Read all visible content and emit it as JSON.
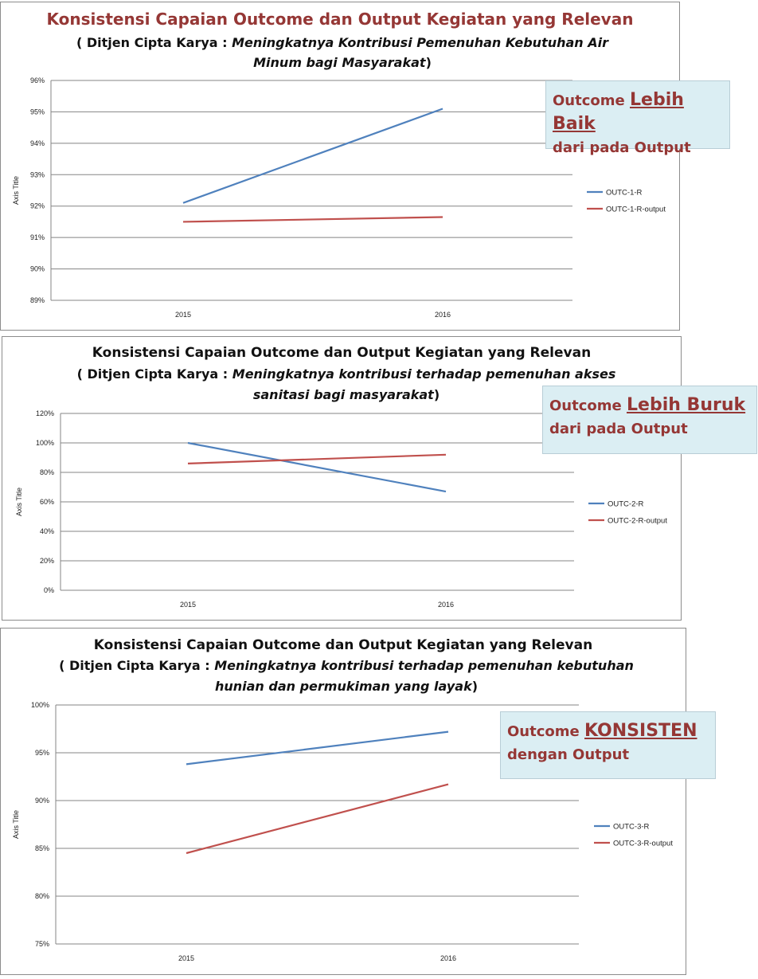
{
  "colors": {
    "series1": "#4f81bd",
    "series2": "#c0504d",
    "grid": "#858585",
    "callout_bg": "#dbeef3",
    "callout_text": "#953735"
  },
  "chart_data": [
    {
      "type": "line",
      "title": "Konsistensi Capaian Outcome dan  Output Kegiatan yang Relevan",
      "subtitle_prefix": "( Ditjen Cipta Karya : ",
      "subtitle_italic": "Meningkatnya Kontribusi  Pemenuhan Kebutuhan Air Minum bagi Masyarakat",
      "subtitle_suffix": ")",
      "ylabel": "Axis Title",
      "categories": [
        "2015",
        "2016"
      ],
      "yticks": [
        "89%",
        "90%",
        "91%",
        "92%",
        "93%",
        "94%",
        "95%",
        "96%"
      ],
      "ylim": [
        89,
        96
      ],
      "grid": true,
      "legend_placement": "right",
      "series": [
        {
          "name": "OUTC-1-R",
          "values": [
            92.1,
            95.1
          ]
        },
        {
          "name": "OUTC-1-R-output",
          "values": [
            91.5,
            91.65
          ]
        }
      ],
      "callout": {
        "prefix": "Outcome ",
        "emphasis": "Lebih Baik",
        "line2": "dari pada Output"
      }
    },
    {
      "type": "line",
      "title": "Konsistensi Capaian Outcome dan  Output Kegiatan yang Relevan",
      "subtitle_prefix": "( Ditjen Cipta Karya : ",
      "subtitle_italic": "Meningkatnya kontribusi terhadap pemenuhan akses sanitasi bagi masyarakat",
      "subtitle_suffix": ")",
      "ylabel": "Axis Title",
      "categories": [
        "2015",
        "2016"
      ],
      "yticks": [
        "0%",
        "20%",
        "40%",
        "60%",
        "80%",
        "100%",
        "120%"
      ],
      "ylim": [
        0,
        120
      ],
      "grid": true,
      "legend_placement": "right",
      "series": [
        {
          "name": "OUTC-2-R",
          "values": [
            100,
            67
          ]
        },
        {
          "name": "OUTC-2-R-output",
          "values": [
            86,
            92
          ]
        }
      ],
      "callout": {
        "prefix": "Outcome ",
        "emphasis": "Lebih Buruk",
        "line2": "dari pada Output"
      }
    },
    {
      "type": "line",
      "title": "Konsistensi Capaian Outcome dan  Output Kegiatan yang Relevan",
      "subtitle_prefix": "( Ditjen Cipta Karya : ",
      "subtitle_italic": "Meningkatnya kontribusi terhadap pemenuhan kebutuhan hunian dan permukiman yang layak",
      "subtitle_suffix": ")",
      "ylabel": "Axis Title",
      "categories": [
        "2015",
        "2016"
      ],
      "yticks": [
        "75%",
        "80%",
        "85%",
        "90%",
        "95%",
        "100%"
      ],
      "ylim": [
        75,
        100
      ],
      "grid": true,
      "legend_placement": "right",
      "series": [
        {
          "name": "OUTC-3-R",
          "values": [
            93.8,
            97.2
          ]
        },
        {
          "name": "OUTC-3-R-output",
          "values": [
            84.5,
            91.7
          ]
        }
      ],
      "callout": {
        "prefix": "Outcome ",
        "emphasis": "KONSISTEN",
        "line2": "dengan Output"
      }
    }
  ]
}
